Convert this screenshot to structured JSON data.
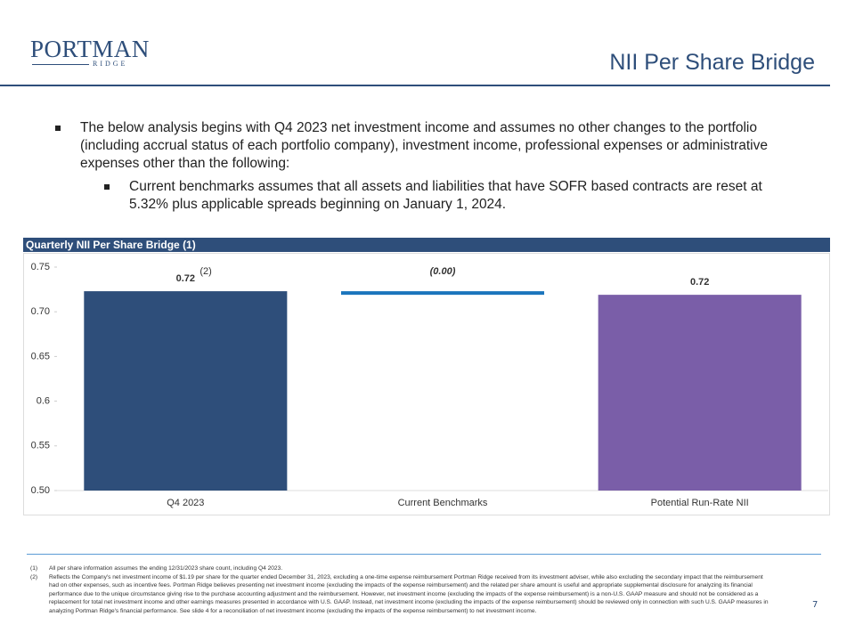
{
  "header": {
    "logo_main": "PORTMAN",
    "logo_sub": "RIDGE",
    "title": "NII Per Share Bridge"
  },
  "bullets": [
    {
      "text": "The below analysis begins with Q4 2023 net investment income and assumes no other changes to the portfolio (including accrual status of each portfolio company), investment income, professional expenses or administrative expenses other than the following:",
      "sub": [
        "Current benchmarks assumes that all assets and liabilities that have SOFR based contracts are reset at 5.32% plus applicable spreads beginning on January 1, 2024."
      ]
    }
  ],
  "chart_panel_title": "Quarterly NII Per Share Bridge (1)",
  "chart_data": {
    "type": "waterfall",
    "categories": [
      "Q4 2023",
      "Current Benchmarks",
      "Potential Run-Rate NII"
    ],
    "values": [
      0.723,
      -0.004,
      0.719
    ],
    "value_labels": [
      "0.72",
      "(0.00)",
      "0.72"
    ],
    "value_label_notes": [
      "(2)",
      null,
      null
    ],
    "totals": [
      true,
      false,
      true
    ],
    "colors": [
      "#2e4e7a",
      "#1b75bc",
      "#7a5ea8"
    ],
    "ylim": [
      0.5,
      0.75
    ],
    "yticks": [
      {
        "value": 0.5,
        "label": "0.50"
      },
      0.55,
      0.6,
      0.65,
      {
        "value": 0.7,
        "label": "0.70"
      },
      0.75
    ],
    "grid": false
  },
  "footnotes": [
    {
      "marker": "(1)",
      "text": "All per share information assumes the ending 12/31/2023 share count, including Q4 2023."
    },
    {
      "marker": "(2)",
      "text": "Reflects the Company's net investment income of $1.19 per share for the quarter ended December 31, 2023, excluding a one-time expense reimbursement Portman Ridge received from its investment adviser, while also excluding the secondary impact that the reimbursement had on other expenses, such as incentive fees. Portman Ridge believes presenting net investment income (excluding the impacts of the expense reimbursement) and the related per share amount is useful and appropriate supplemental disclosure for analyzing its financial performance due to the unique circumstance giving rise to the purchase accounting adjustment and the reimbursement. However, net investment income (excluding the impacts of the expense reimbursement) is a non-U.S. GAAP measure and should not be considered as a replacement for total net investment income and other earnings measures presented in accordance with U.S. GAAP. Instead, net investment income (excluding the impacts of the expense reimbursement) should be reviewed only in connection with such U.S. GAAP measures in analyzing Portman Ridge's financial performance. See slide 4 for a reconciliation of net investment income (excluding the impacts of the expense reimbursement) to net investment income."
    }
  ],
  "page_number": 7
}
